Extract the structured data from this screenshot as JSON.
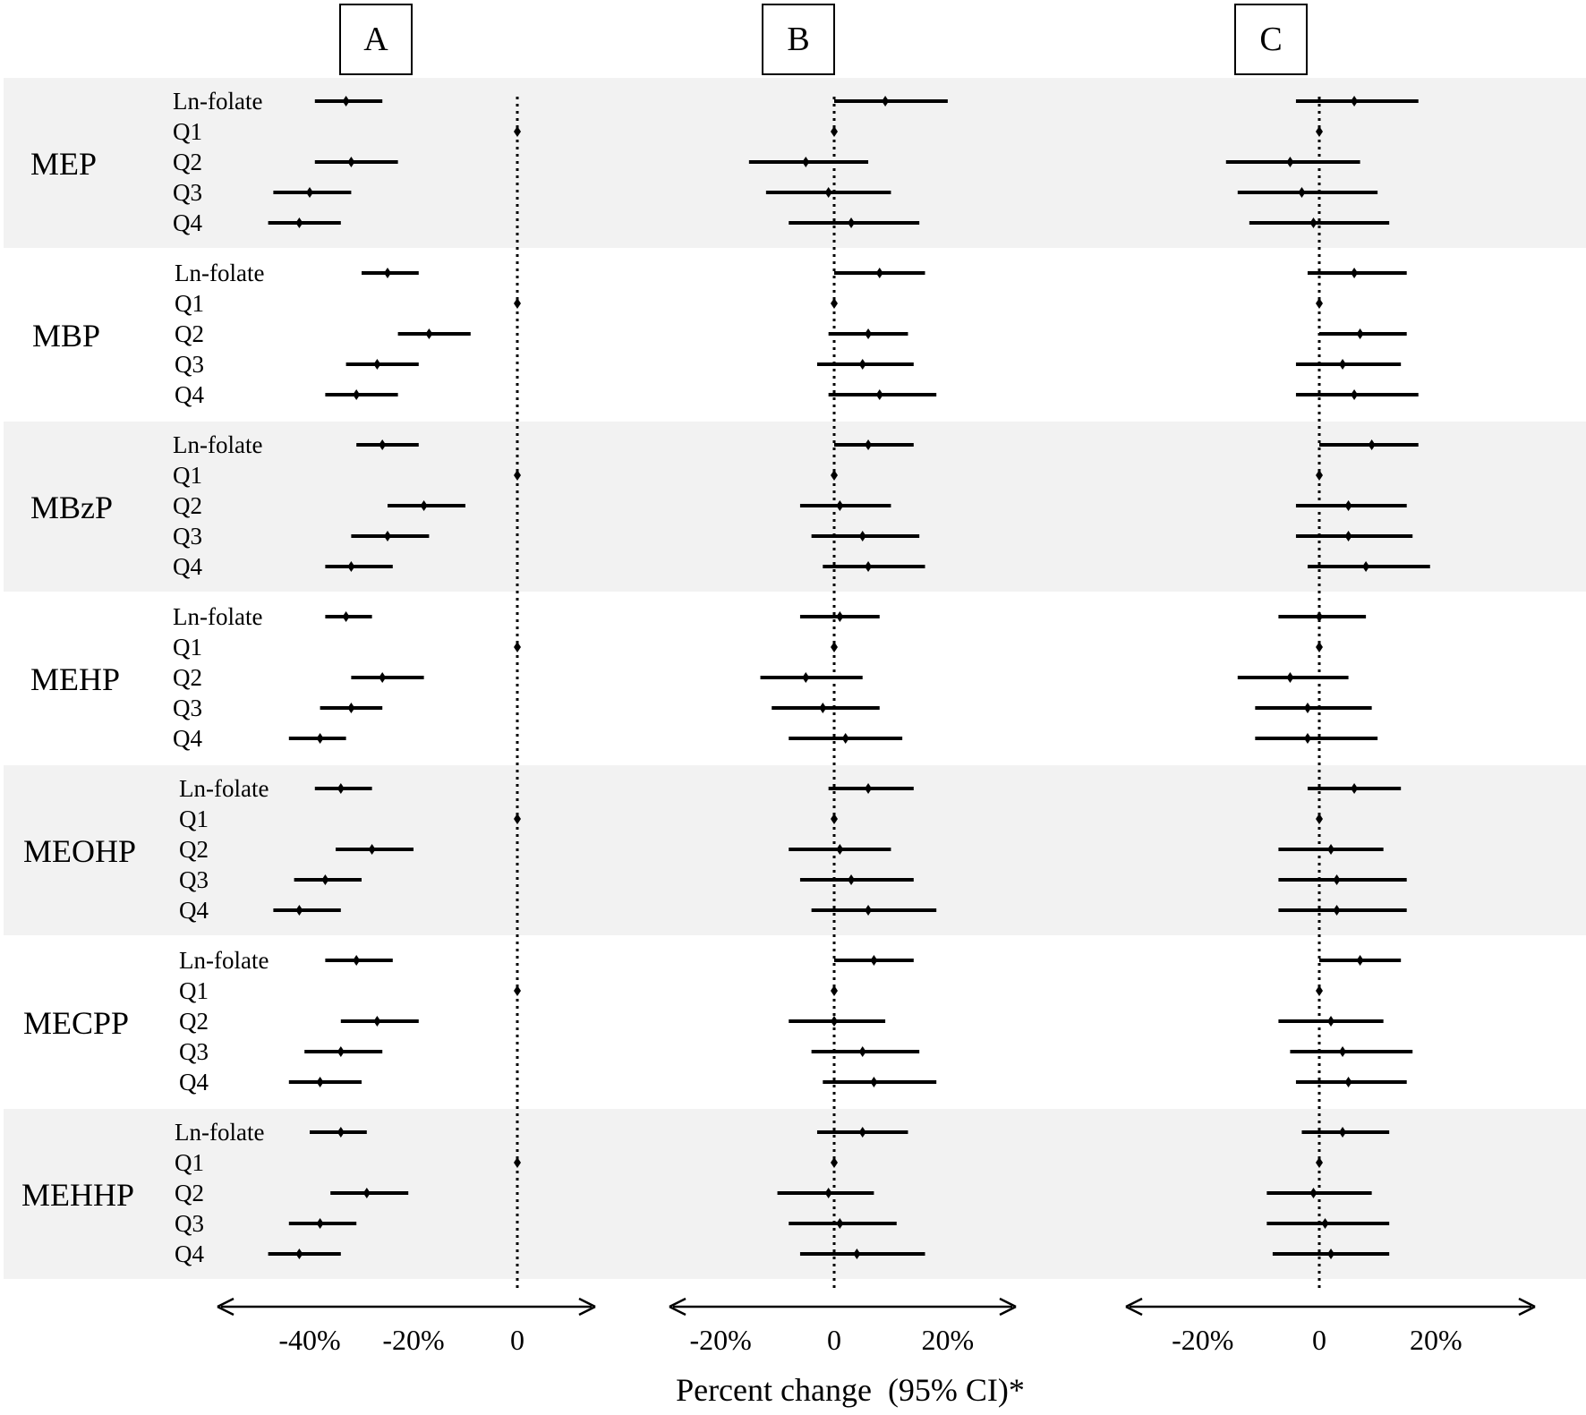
{
  "chart_data": {
    "type": "forest",
    "xlabel": "Percent change  (95% CI)*",
    "reference_value": 0,
    "row_labels": [
      "Ln-folate",
      "Q1",
      "Q2",
      "Q3",
      "Q4"
    ],
    "groups": [
      "MEP",
      "MBP",
      "MBzP",
      "MEHP",
      "MEOHP",
      "MECPP",
      "MEHHP"
    ],
    "panels": [
      {
        "label": "A",
        "xlim": [
          -59,
          15
        ],
        "ticks": [
          {
            "v": -40,
            "label": "-40%"
          },
          {
            "v": -20,
            "label": "-20%"
          },
          {
            "v": 0,
            "label": "0"
          }
        ],
        "estimates": {
          "MEP": [
            [
              -33,
              -39,
              -26
            ],
            [
              0,
              0,
              0
            ],
            [
              -32,
              -39,
              -23
            ],
            [
              -40,
              -47,
              -32
            ],
            [
              -42,
              -48,
              -34
            ]
          ],
          "MBP": [
            [
              -25,
              -30,
              -19
            ],
            [
              0,
              0,
              0
            ],
            [
              -17,
              -23,
              -9
            ],
            [
              -27,
              -33,
              -19
            ],
            [
              -31,
              -37,
              -23
            ]
          ],
          "MBzP": [
            [
              -26,
              -31,
              -19
            ],
            [
              0,
              0,
              0
            ],
            [
              -18,
              -25,
              -10
            ],
            [
              -25,
              -32,
              -17
            ],
            [
              -32,
              -37,
              -24
            ]
          ],
          "MEHP": [
            [
              -33,
              -37,
              -28
            ],
            [
              0,
              0,
              0
            ],
            [
              -26,
              -32,
              -18
            ],
            [
              -32,
              -38,
              -26
            ],
            [
              -38,
              -44,
              -33
            ]
          ],
          "MEOHP": [
            [
              -34,
              -39,
              -28
            ],
            [
              0,
              0,
              0
            ],
            [
              -28,
              -35,
              -20
            ],
            [
              -37,
              -43,
              -30
            ],
            [
              -42,
              -47,
              -34
            ]
          ],
          "MECPP": [
            [
              -31,
              -37,
              -24
            ],
            [
              0,
              0,
              0
            ],
            [
              -27,
              -34,
              -19
            ],
            [
              -34,
              -41,
              -26
            ],
            [
              -38,
              -44,
              -30
            ]
          ],
          "MEHHP": [
            [
              -34,
              -40,
              -29
            ],
            [
              0,
              0,
              0
            ],
            [
              -29,
              -36,
              -21
            ],
            [
              -38,
              -44,
              -31
            ],
            [
              -42,
              -48,
              -34
            ]
          ]
        }
      },
      {
        "label": "B",
        "xlim": [
          -30,
          32
        ],
        "ticks": [
          {
            "v": -20,
            "label": "-20%"
          },
          {
            "v": 0,
            "label": "0"
          },
          {
            "v": 20,
            "label": "20%"
          }
        ],
        "estimates": {
          "MEP": [
            [
              9,
              0,
              20
            ],
            [
              0,
              0,
              0
            ],
            [
              -5,
              -15,
              6
            ],
            [
              -1,
              -12,
              10
            ],
            [
              3,
              -8,
              15
            ]
          ],
          "MBP": [
            [
              8,
              0,
              16
            ],
            [
              0,
              0,
              0
            ],
            [
              6,
              -1,
              13
            ],
            [
              5,
              -3,
              14
            ],
            [
              8,
              -1,
              18
            ]
          ],
          "MBzP": [
            [
              6,
              0,
              14
            ],
            [
              0,
              0,
              0
            ],
            [
              1,
              -6,
              10
            ],
            [
              5,
              -4,
              15
            ],
            [
              6,
              -2,
              16
            ]
          ],
          "MEHP": [
            [
              1,
              -6,
              8
            ],
            [
              0,
              0,
              0
            ],
            [
              -5,
              -13,
              5
            ],
            [
              -2,
              -11,
              8
            ],
            [
              2,
              -8,
              12
            ]
          ],
          "MEOHP": [
            [
              6,
              -1,
              14
            ],
            [
              0,
              0,
              0
            ],
            [
              1,
              -8,
              10
            ],
            [
              3,
              -6,
              14
            ],
            [
              6,
              -4,
              18
            ]
          ],
          "MECPP": [
            [
              7,
              0,
              14
            ],
            [
              0,
              0,
              0
            ],
            [
              0,
              -8,
              9
            ],
            [
              5,
              -4,
              15
            ],
            [
              7,
              -2,
              18
            ]
          ],
          "MEHHP": [
            [
              5,
              -3,
              13
            ],
            [
              0,
              0,
              0
            ],
            [
              -1,
              -10,
              7
            ],
            [
              1,
              -8,
              11
            ],
            [
              4,
              -6,
              16
            ]
          ]
        }
      },
      {
        "label": "C",
        "xlim": [
          -34,
          37
        ],
        "ticks": [
          {
            "v": -20,
            "label": "-20%"
          },
          {
            "v": 0,
            "label": "0"
          },
          {
            "v": 20,
            "label": "20%"
          }
        ],
        "estimates": {
          "MEP": [
            [
              6,
              -4,
              17
            ],
            [
              0,
              0,
              0
            ],
            [
              -5,
              -16,
              7
            ],
            [
              -3,
              -14,
              10
            ],
            [
              -1,
              -12,
              12
            ]
          ],
          "MBP": [
            [
              6,
              -2,
              15
            ],
            [
              0,
              0,
              0
            ],
            [
              7,
              0,
              15
            ],
            [
              4,
              -4,
              14
            ],
            [
              6,
              -4,
              17
            ]
          ],
          "MBzP": [
            [
              9,
              0,
              17
            ],
            [
              0,
              0,
              0
            ],
            [
              5,
              -4,
              15
            ],
            [
              5,
              -4,
              16
            ],
            [
              8,
              -2,
              19
            ]
          ],
          "MEHP": [
            [
              0,
              -7,
              8
            ],
            [
              0,
              0,
              0
            ],
            [
              -5,
              -14,
              5
            ],
            [
              -2,
              -11,
              9
            ],
            [
              -2,
              -11,
              10
            ]
          ],
          "MEOHP": [
            [
              6,
              -2,
              14
            ],
            [
              0,
              0,
              0
            ],
            [
              2,
              -7,
              11
            ],
            [
              3,
              -7,
              15
            ],
            [
              3,
              -7,
              15
            ]
          ],
          "MECPP": [
            [
              7,
              0,
              14
            ],
            [
              0,
              0,
              0
            ],
            [
              2,
              -7,
              11
            ],
            [
              4,
              -5,
              16
            ],
            [
              5,
              -4,
              15
            ]
          ],
          "MEHHP": [
            [
              4,
              -3,
              12
            ],
            [
              0,
              0,
              0
            ],
            [
              -1,
              -9,
              9
            ],
            [
              1,
              -9,
              12
            ],
            [
              2,
              -8,
              12
            ]
          ]
        }
      }
    ]
  }
}
